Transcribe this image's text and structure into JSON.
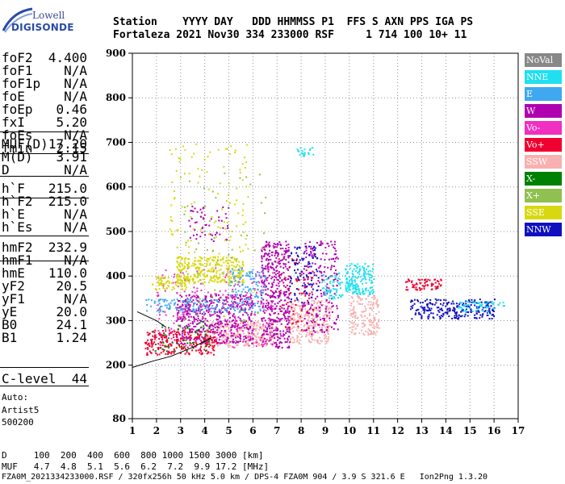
{
  "logo": {
    "line1": "Lowell",
    "line2": "DIGISONDE"
  },
  "header": {
    "line1": "Station    YYYY DAY   DDD HHMMSS P1  FFS S AXN PPS IGA PS",
    "line2": "Fortaleza 2021 Nov30 334 233000 RSF     1 714 100 10+ 11"
  },
  "params": {
    "group1": [
      {
        "k": "foF2",
        "v": "4.400"
      },
      {
        "k": "foF1",
        "v": "N/A"
      },
      {
        "k": "foF1p",
        "v": "N/A"
      },
      {
        "k": "foE",
        "v": "N/A"
      },
      {
        "k": "foEp",
        "v": "0.46"
      },
      {
        "k": "fxI",
        "v": "5.20"
      },
      {
        "k": "foEs",
        "v": "N/A"
      },
      {
        "k": "fmin",
        "v": "2.15"
      }
    ],
    "group2": [
      {
        "k": "MUF(D)",
        "v": "17.20"
      },
      {
        "k": "M(D)",
        "v": "3.91"
      },
      {
        "k": "D",
        "v": "N/A"
      }
    ],
    "group3": [
      {
        "k": "h`F",
        "v": "215.0"
      },
      {
        "k": "h`F2",
        "v": "215.0"
      },
      {
        "k": "h`E",
        "v": "N/A"
      },
      {
        "k": "h`Es",
        "v": "N/A"
      }
    ],
    "group4": [
      {
        "k": "hmF2",
        "v": "232.9"
      },
      {
        "k": "hmF1",
        "v": "N/A"
      },
      {
        "k": "hmE",
        "v": "110.0"
      },
      {
        "k": "yF2",
        "v": "20.5"
      },
      {
        "k": "yF1",
        "v": "N/A"
      },
      {
        "k": "yE",
        "v": "20.0"
      },
      {
        "k": "B0",
        "v": "24.1"
      },
      {
        "k": "B1",
        "v": "1.24"
      }
    ],
    "clevel": {
      "k": "C-level",
      "v": "44"
    },
    "auto_label": "Auto:",
    "auto_value": "Artist5",
    "auto_code": "500200"
  },
  "legend": [
    {
      "label": "NoVal",
      "bg": "#888888",
      "fg": "#ffffff"
    },
    {
      "label": "NNE",
      "bg": "#20e0f0",
      "fg": "#ffffff"
    },
    {
      "label": "E",
      "bg": "#40a8f0",
      "fg": "#ffffff"
    },
    {
      "label": "W",
      "bg": "#b000b0",
      "fg": "#ffffff"
    },
    {
      "label": "Vo-",
      "bg": "#f030c0",
      "fg": "#ffffff"
    },
    {
      "label": "Vo+",
      "bg": "#f00030",
      "fg": "#ffffff"
    },
    {
      "label": "SSW",
      "bg": "#f8b0b0",
      "fg": "#ffffff"
    },
    {
      "label": "X-",
      "bg": "#008000",
      "fg": "#ffffff"
    },
    {
      "label": "X+",
      "bg": "#90c050",
      "fg": "#ffffff"
    },
    {
      "label": "SSE",
      "bg": "#d8d810",
      "fg": "#ffffff"
    },
    {
      "label": "NNW",
      "bg": "#1010c0",
      "fg": "#ffffff"
    }
  ],
  "footer": {
    "line1": "D     100  200  400  600  800 1000 1500 3000 [km]",
    "line2": "MUF   4.7  4.8  5.1  5.6  6.2  7.2  9.9 17.2 [MHz]",
    "line3": "FZA0M_2021334233000.RSF / 320fx256h 50 kHz 5.0 km / DPS-4 FZA0M 904 / 3.9 S 321.6 E   Ion2Png 1.3.20"
  },
  "chart_data": {
    "type": "scatter",
    "xlim": [
      1,
      17
    ],
    "ylim": [
      80,
      900
    ],
    "xticks": [
      1,
      2,
      3,
      4,
      5,
      6,
      7,
      8,
      9,
      10,
      11,
      12,
      13,
      14,
      15,
      16,
      17
    ],
    "yticks": [
      80,
      200,
      300,
      400,
      500,
      600,
      700,
      800,
      900
    ],
    "grid": "dotted",
    "clusters": [
      {
        "color": "#f8b0b0",
        "fx": [
          4.0,
          7.0
        ],
        "hy": [
          245,
          300
        ],
        "n": 300
      },
      {
        "color": "#f8b0b0",
        "fx": [
          7.5,
          9.2
        ],
        "hy": [
          250,
          350
        ],
        "n": 260
      },
      {
        "color": "#f8b0b0",
        "fx": [
          10.0,
          11.2
        ],
        "hy": [
          270,
          360
        ],
        "n": 160
      },
      {
        "color": "#b000b0",
        "fx": [
          2.8,
          6.0
        ],
        "hy": [
          250,
          360
        ],
        "n": 480
      },
      {
        "color": "#b000b0",
        "fx": [
          6.3,
          7.5
        ],
        "hy": [
          240,
          480
        ],
        "n": 420
      },
      {
        "color": "#b000b0",
        "fx": [
          8.0,
          9.5
        ],
        "hy": [
          270,
          480
        ],
        "n": 220
      },
      {
        "color": "#b000b0",
        "fx": [
          3.3,
          5.0
        ],
        "hy": [
          480,
          560
        ],
        "n": 55
      },
      {
        "color": "#f030c0",
        "fx": [
          2.0,
          6.8
        ],
        "hy": [
          240,
          420
        ],
        "n": 240
      },
      {
        "color": "#f00030",
        "fx": [
          1.5,
          4.5
        ],
        "hy": [
          225,
          280
        ],
        "n": 240
      },
      {
        "color": "#f00030",
        "fx": [
          12.3,
          13.8
        ],
        "hy": [
          370,
          395
        ],
        "n": 70
      },
      {
        "color": "#f00030",
        "fx": [
          7.0,
          8.5
        ],
        "hy": [
          280,
          440
        ],
        "n": 70
      },
      {
        "color": "#d8d810",
        "fx": [
          2.8,
          5.6
        ],
        "hy": [
          385,
          445
        ],
        "n": 320
      },
      {
        "color": "#d8d810",
        "fx": [
          1.8,
          3.3
        ],
        "hy": [
          370,
          400
        ],
        "n": 70
      },
      {
        "color": "#d8d810",
        "fx": [
          2.5,
          5.8
        ],
        "hy": [
          450,
          700
        ],
        "n": 110
      },
      {
        "color": "#40a8f0",
        "fx": [
          1.5,
          6.5
        ],
        "hy": [
          320,
          350
        ],
        "n": 150
      },
      {
        "color": "#40a8f0",
        "fx": [
          5.0,
          6.5
        ],
        "hy": [
          350,
          420
        ],
        "n": 90
      },
      {
        "color": "#20e0f0",
        "fx": [
          9.8,
          11.0
        ],
        "hy": [
          360,
          430
        ],
        "n": 170
      },
      {
        "color": "#20e0f0",
        "fx": [
          8.8,
          9.7
        ],
        "hy": [
          350,
          410
        ],
        "n": 60
      },
      {
        "color": "#20e0f0",
        "fx": [
          7.8,
          8.5
        ],
        "hy": [
          670,
          690
        ],
        "n": 20
      },
      {
        "color": "#1010c0",
        "fx": [
          12.5,
          16.0
        ],
        "hy": [
          305,
          350
        ],
        "n": 240
      },
      {
        "color": "#1010c0",
        "fx": [
          7.5,
          8.7
        ],
        "hy": [
          340,
          470
        ],
        "n": 90
      },
      {
        "color": "#008000",
        "fx": [
          1.7,
          4.2
        ],
        "hy": [
          230,
          300
        ],
        "n": 50
      },
      {
        "color": "#90c050",
        "fx": [
          3.0,
          6.5
        ],
        "hy": [
          300,
          640
        ],
        "n": 60
      },
      {
        "color": "#20e0f0",
        "fx": [
          14.5,
          16.4
        ],
        "hy": [
          320,
          345
        ],
        "n": 60
      }
    ],
    "trace_lines": [
      {
        "points": [
          [
            1.9,
            210
          ],
          [
            2.6,
            220
          ],
          [
            3.5,
            240
          ],
          [
            4.3,
            262
          ]
        ]
      },
      {
        "points": [
          [
            1.0,
            195
          ],
          [
            1.9,
            210
          ]
        ]
      },
      {
        "points": [
          [
            1.2,
            320
          ],
          [
            2.0,
            300
          ],
          [
            2.4,
            285
          ]
        ]
      }
    ]
  }
}
